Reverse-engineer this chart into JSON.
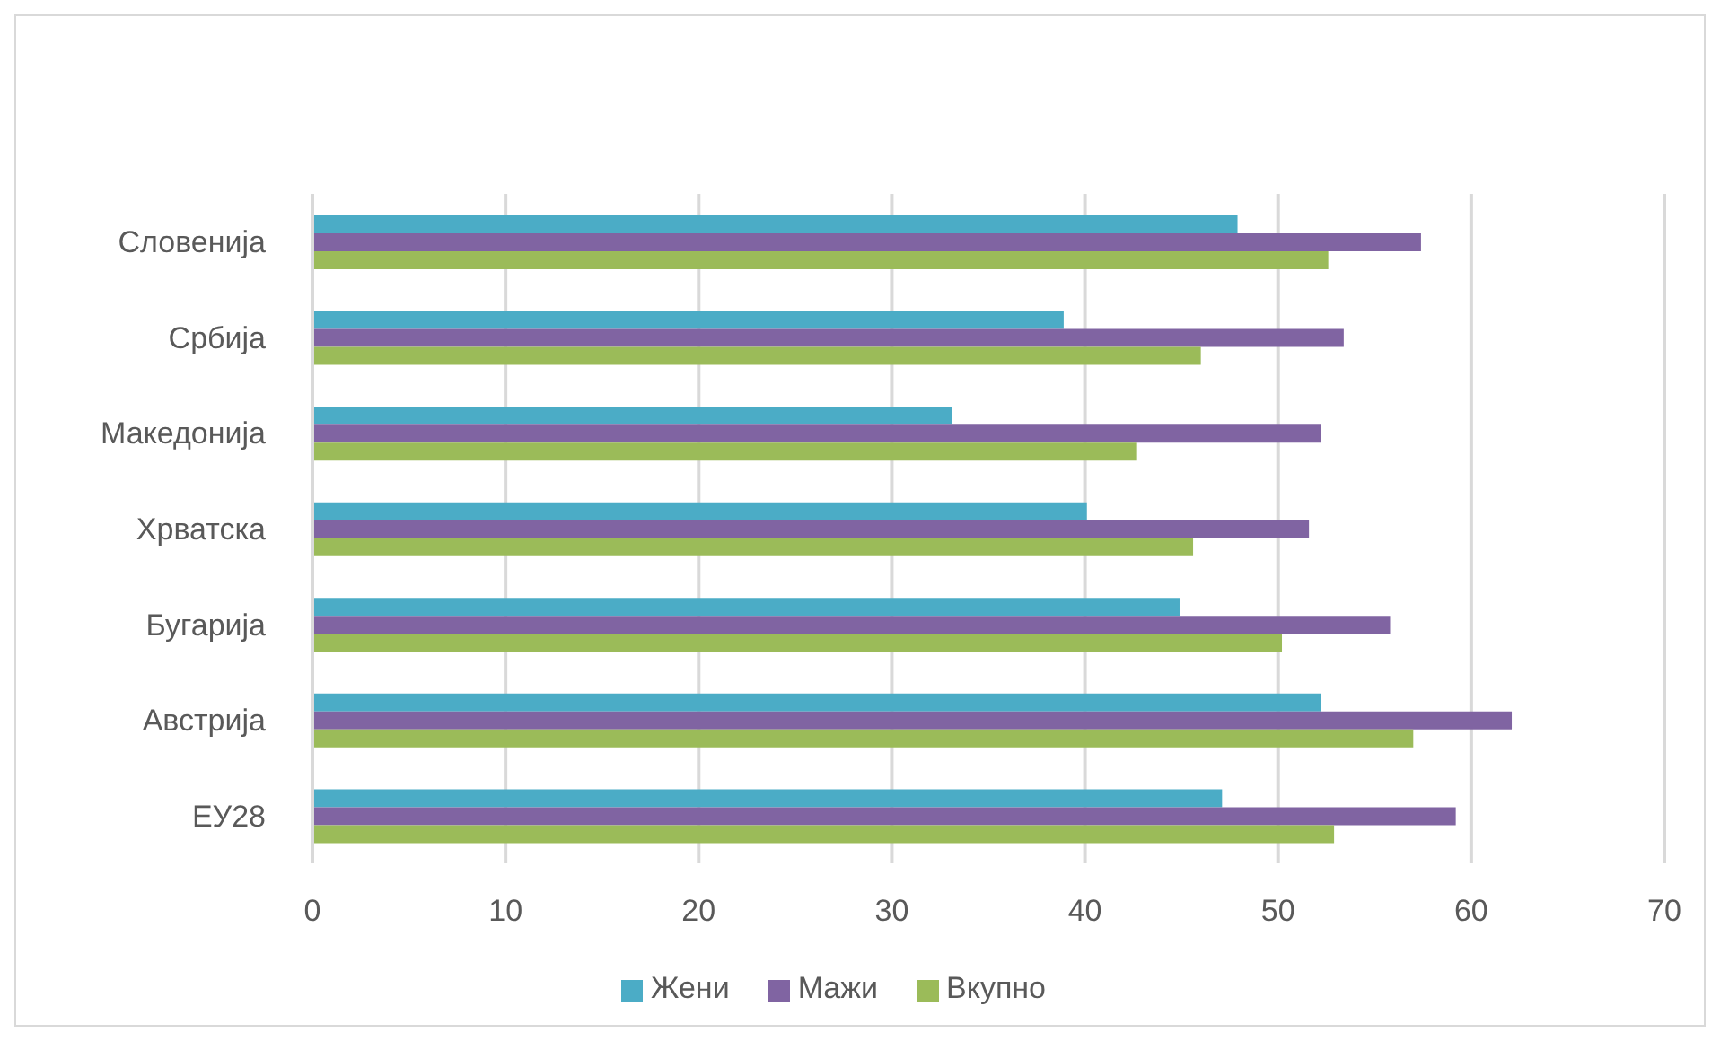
{
  "chart_data": {
    "type": "bar",
    "orientation": "horizontal",
    "categories": [
      "Словенија",
      "Србија",
      "Македонија",
      "Хрватска",
      "Бугарија",
      "Австрија",
      "ЕУ28"
    ],
    "series": [
      {
        "name": "Жени",
        "color": "#4bacc6",
        "values": [
          47.9,
          38.9,
          33.1,
          40.1,
          44.9,
          52.2,
          47.1
        ]
      },
      {
        "name": "Мажи",
        "color": "#8064a2",
        "values": [
          57.4,
          53.4,
          52.2,
          51.6,
          55.8,
          62.1,
          59.2
        ]
      },
      {
        "name": "Вкупно",
        "color": "#9bbb59",
        "values": [
          52.6,
          46.0,
          42.7,
          45.6,
          50.2,
          57.0,
          52.9
        ]
      }
    ],
    "xlim": [
      0,
      70
    ],
    "xticks": [
      0,
      10,
      20,
      30,
      40,
      50,
      60,
      70
    ],
    "grid": "x",
    "legend": "bottom"
  }
}
